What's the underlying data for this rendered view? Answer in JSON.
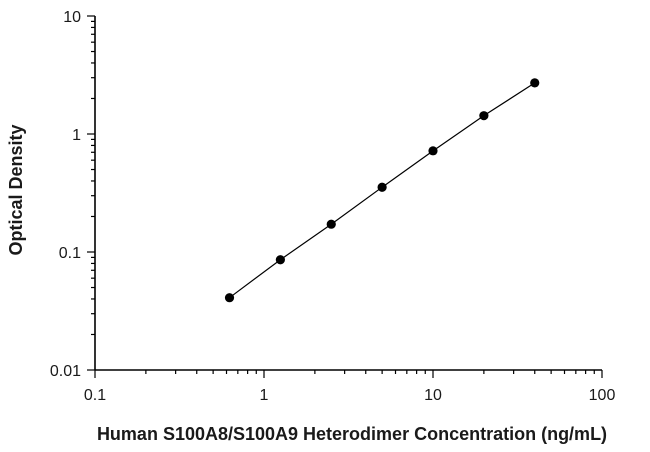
{
  "chart_data": {
    "type": "scatter",
    "title": "",
    "xlabel": "Human S100A8/S100A9 Heterodimer Concentration (ng/mL)",
    "ylabel": "Optical Density",
    "x_scale": "log",
    "y_scale": "log",
    "xlim": [
      0.1,
      100
    ],
    "ylim": [
      0.01,
      10
    ],
    "x_ticks": [
      "0.1",
      "1",
      "10",
      "100"
    ],
    "y_ticks": [
      "0.01",
      "0.1",
      "1",
      "10"
    ],
    "grid": false,
    "legend": "none",
    "fit_line": true,
    "series": [
      {
        "x": [
          0.625,
          1.25,
          2.5,
          5,
          10,
          20,
          40
        ],
        "y": [
          0.041,
          0.086,
          0.172,
          0.354,
          0.72,
          1.43,
          2.71
        ]
      }
    ],
    "colors": {
      "marker": "#000000",
      "line": "#000000",
      "axis": "#000000"
    }
  }
}
